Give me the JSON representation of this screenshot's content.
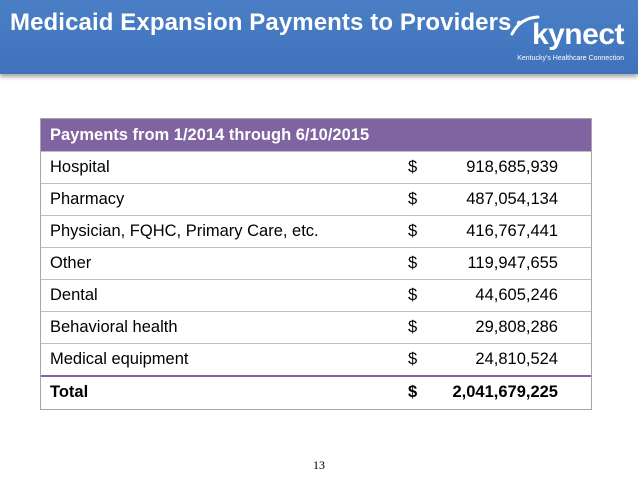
{
  "header": {
    "title": "Medicaid Expansion Payments to Providers",
    "logo_word": "kynect",
    "logo_tagline": "Kentucky's Healthcare Connection"
  },
  "table": {
    "heading": "Payments from 1/2014 through 6/10/2015",
    "currency": "$",
    "rows": [
      {
        "label": "Hospital",
        "amount": "918,685,939"
      },
      {
        "label": "Pharmacy",
        "amount": "487,054,134"
      },
      {
        "label": "Physician, FQHC, Primary Care, etc.",
        "amount": "416,767,441"
      },
      {
        "label": "Other",
        "amount": "119,947,655"
      },
      {
        "label": "Dental",
        "amount": "44,605,246"
      },
      {
        "label": "Behavioral health",
        "amount": "29,808,286"
      },
      {
        "label": "Medical equipment",
        "amount": "24,810,524"
      }
    ],
    "total": {
      "label": "Total",
      "amount": "2,041,679,225"
    }
  },
  "footer": {
    "page_number": "13"
  },
  "colors": {
    "header_bg": "#4a7fc6",
    "table_header": "#8064a2"
  }
}
